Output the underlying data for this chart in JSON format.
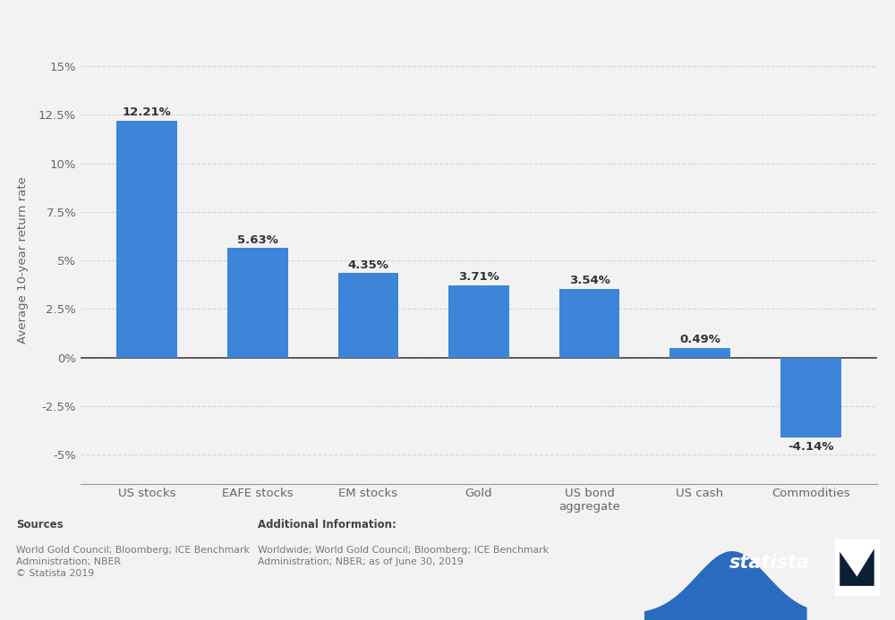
{
  "categories": [
    "US stocks",
    "EAFE stocks",
    "EM stocks",
    "Gold",
    "US bond\naggregate",
    "US cash",
    "Commodities"
  ],
  "values": [
    12.21,
    5.63,
    4.35,
    3.71,
    3.54,
    0.49,
    -4.14
  ],
  "labels": [
    "12.21%",
    "5.63%",
    "4.35%",
    "3.71%",
    "3.54%",
    "0.49%",
    "-4.14%"
  ],
  "bar_color": "#3d85d8",
  "background_color": "#f2f2f2",
  "ylabel": "Average 10-year return rate",
  "ylim": [
    -6.5,
    16.5
  ],
  "yticks": [
    -5,
    -2.5,
    0,
    2.5,
    5,
    7.5,
    10,
    12.5,
    15
  ],
  "ytick_labels": [
    "-5%",
    "-2.5%",
    "0%",
    "2.5%",
    "5%",
    "7.5%",
    "10%",
    "12.5%",
    "15%"
  ],
  "sources_title": "Sources",
  "sources_text": "World Gold Council; Bloomberg; ICE Benchmark\nAdministration; NBER\n© Statista 2019",
  "additional_title": "Additional Information:",
  "additional_text": "Worldwide; World Gold Council; Bloomberg; ICE Benchmark\nAdministration; NBER; as of June 30, 2019",
  "footer_bg": "#f2f2f2",
  "statista_bg": "#0d1f35",
  "statista_blue": "#2a6abf",
  "grid_color": "#d5d5d5",
  "label_color": "#333333",
  "tick_color": "#666666"
}
